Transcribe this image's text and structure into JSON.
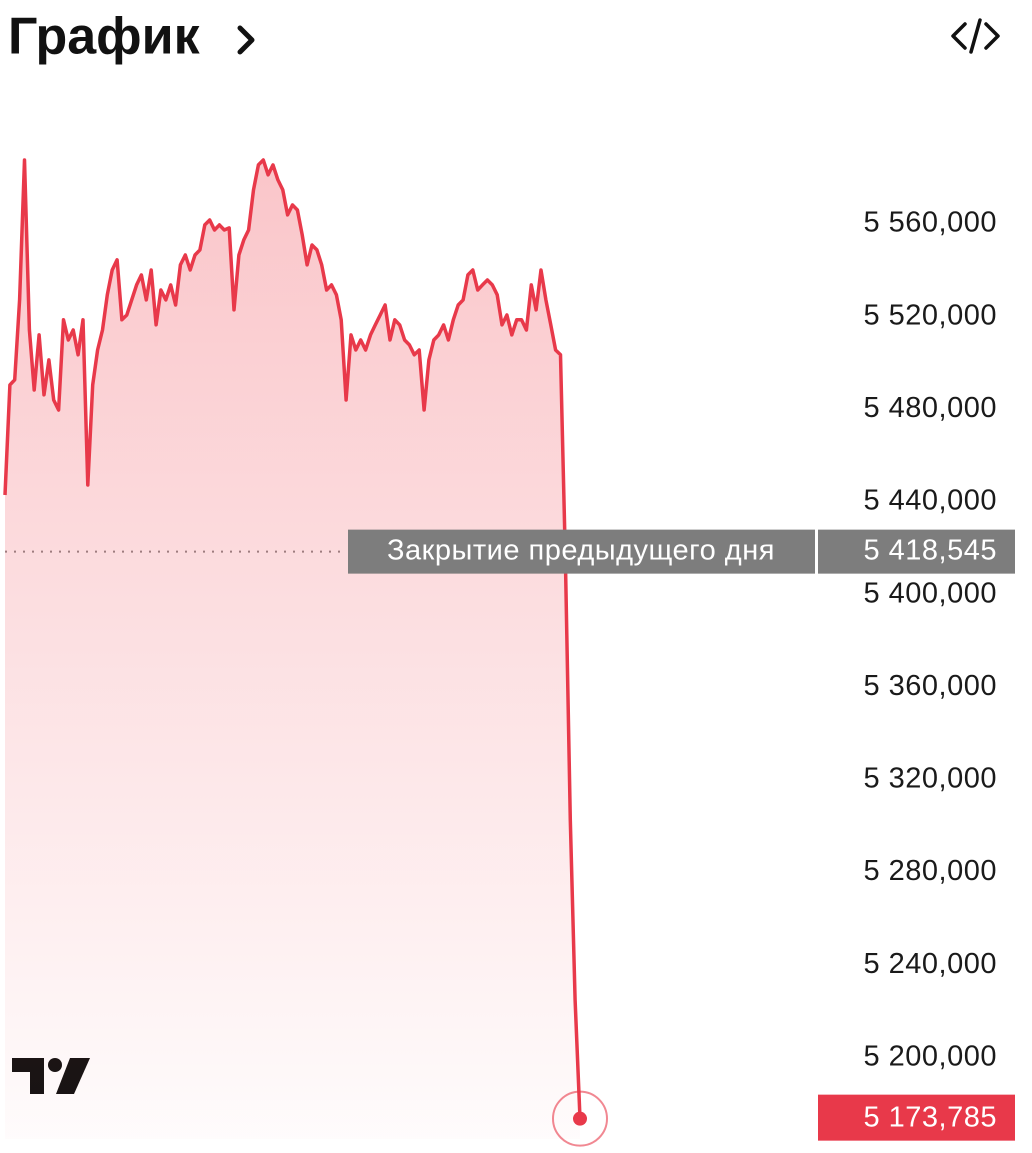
{
  "chart_data": {
    "type": "line",
    "title": "График",
    "values": [
      5443000,
      5490500,
      5492700,
      5527200,
      5587600,
      5514200,
      5488300,
      5512100,
      5486200,
      5501300,
      5484000,
      5479700,
      5518600,
      5509900,
      5514200,
      5503500,
      5518600,
      5447300,
      5490500,
      5505600,
      5514200,
      5529400,
      5540100,
      5544500,
      5518600,
      5520700,
      5527200,
      5533700,
      5538000,
      5527200,
      5540100,
      5516400,
      5531500,
      5527200,
      5533700,
      5525000,
      5542300,
      5546600,
      5540100,
      5546600,
      5548800,
      5559600,
      5561700,
      5557400,
      5559600,
      5557400,
      5558300,
      5522900,
      5546600,
      5553100,
      5557400,
      5574700,
      5585500,
      5587600,
      5581200,
      5585500,
      5579000,
      5574700,
      5563900,
      5568200,
      5566000,
      5555300,
      5542300,
      5550900,
      5548800,
      5542300,
      5531500,
      5533700,
      5529400,
      5518600,
      5484000,
      5512100,
      5505600,
      5509900,
      5505600,
      5512100,
      5516400,
      5520700,
      5525000,
      5509900,
      5518600,
      5516400,
      5509900,
      5507800,
      5503500,
      5505600,
      5479700,
      5501300,
      5509900,
      5512100,
      5516400,
      5509900,
      5518600,
      5525000,
      5527200,
      5538000,
      5540100,
      5531500,
      5533700,
      5535800,
      5533700,
      5529400,
      5516400,
      5520700,
      5512100,
      5518600,
      5518600,
      5514200,
      5533700,
      5522900,
      5540100,
      5527200,
      5516400,
      5505600,
      5503500,
      5415000,
      5302700,
      5225000,
      5173785
    ],
    "color": "#e8394a",
    "ylim": [
      5165000,
      5613500
    ],
    "yticks": [
      {
        "value": 5560000,
        "label": "5 560,000"
      },
      {
        "value": 5520000,
        "label": "5 520,000"
      },
      {
        "value": 5480000,
        "label": "5 480,000"
      },
      {
        "value": 5440000,
        "label": "5 440,000"
      },
      {
        "value": 5400000,
        "label": "5 400,000"
      },
      {
        "value": 5360000,
        "label": "5 360,000"
      },
      {
        "value": 5320000,
        "label": "5 320,000"
      },
      {
        "value": 5280000,
        "label": "5 280,000"
      },
      {
        "value": 5240000,
        "label": "5 240,000"
      },
      {
        "value": 5200000,
        "label": "5 200,000"
      }
    ],
    "reference": {
      "label": "Закрытие предыдущего дня",
      "value": 5418545,
      "value_label": "5 418,545"
    },
    "last_value_label": "5 173,785"
  }
}
